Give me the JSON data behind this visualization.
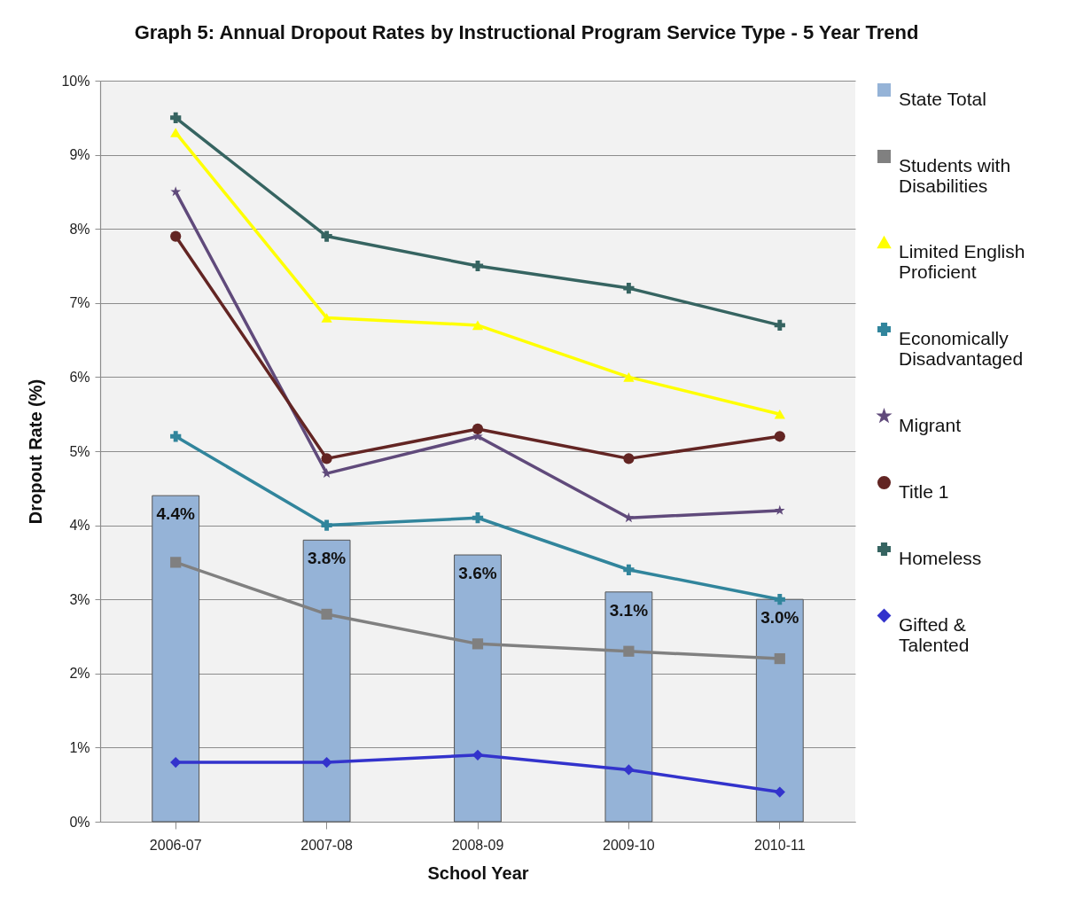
{
  "chart_data": {
    "type": "line",
    "title": "Graph 5: Annual Dropout Rates by Instructional Program Service Type - 5 Year Trend",
    "xlabel": "School Year",
    "ylabel": "Dropout Rate (%)",
    "categories": [
      "2006-07",
      "2007-08",
      "2008-09",
      "2009-10",
      "2010-11"
    ],
    "ylim": [
      0,
      10
    ],
    "yticks": [
      {
        "value": 0,
        "label": "0%"
      },
      {
        "value": 1,
        "label": "1%"
      },
      {
        "value": 2,
        "label": "2%"
      },
      {
        "value": 3,
        "label": "3%"
      },
      {
        "value": 4,
        "label": "4%"
      },
      {
        "value": 5,
        "label": "5%"
      },
      {
        "value": 6,
        "label": "6%"
      },
      {
        "value": 7,
        "label": "7%"
      },
      {
        "value": 8,
        "label": "8%"
      },
      {
        "value": 9,
        "label": "9%"
      },
      {
        "value": 10,
        "label": "10%"
      }
    ],
    "grid": "y",
    "legend": "right",
    "series": [
      {
        "name": "State Total",
        "type": "bar",
        "color": "#95b3d7",
        "values": [
          4.4,
          3.8,
          3.6,
          3.1,
          3.0
        ],
        "value_labels": [
          "4.4%",
          "3.8%",
          "3.6%",
          "3.1%",
          "3.0%"
        ]
      },
      {
        "name": "Students with Disabilities",
        "color": "#808080",
        "marker": "square",
        "values": [
          3.5,
          2.8,
          2.4,
          2.3,
          2.2
        ]
      },
      {
        "name": "Limited English Proficient",
        "color": "#ffff00",
        "marker": "triangle",
        "values": [
          9.3,
          6.8,
          6.7,
          6.0,
          5.5
        ]
      },
      {
        "name": "Economically Disadvantaged",
        "color": "#31859c",
        "marker": "cross",
        "values": [
          5.2,
          4.0,
          4.1,
          3.4,
          3.0
        ]
      },
      {
        "name": "Migrant",
        "color": "#604a7b",
        "marker": "star",
        "values": [
          8.5,
          4.7,
          5.2,
          4.1,
          4.2
        ]
      },
      {
        "name": "Title 1",
        "color": "#632523",
        "marker": "circle",
        "values": [
          7.9,
          4.9,
          5.3,
          4.9,
          5.2
        ]
      },
      {
        "name": "Homeless",
        "color": "#366461",
        "marker": "cross",
        "values": [
          9.5,
          7.9,
          7.5,
          7.2,
          6.7
        ]
      },
      {
        "name": "Gifted & Talented",
        "color": "#3333cc",
        "marker": "diamond",
        "values": [
          0.8,
          0.8,
          0.9,
          0.7,
          0.4
        ]
      }
    ]
  }
}
